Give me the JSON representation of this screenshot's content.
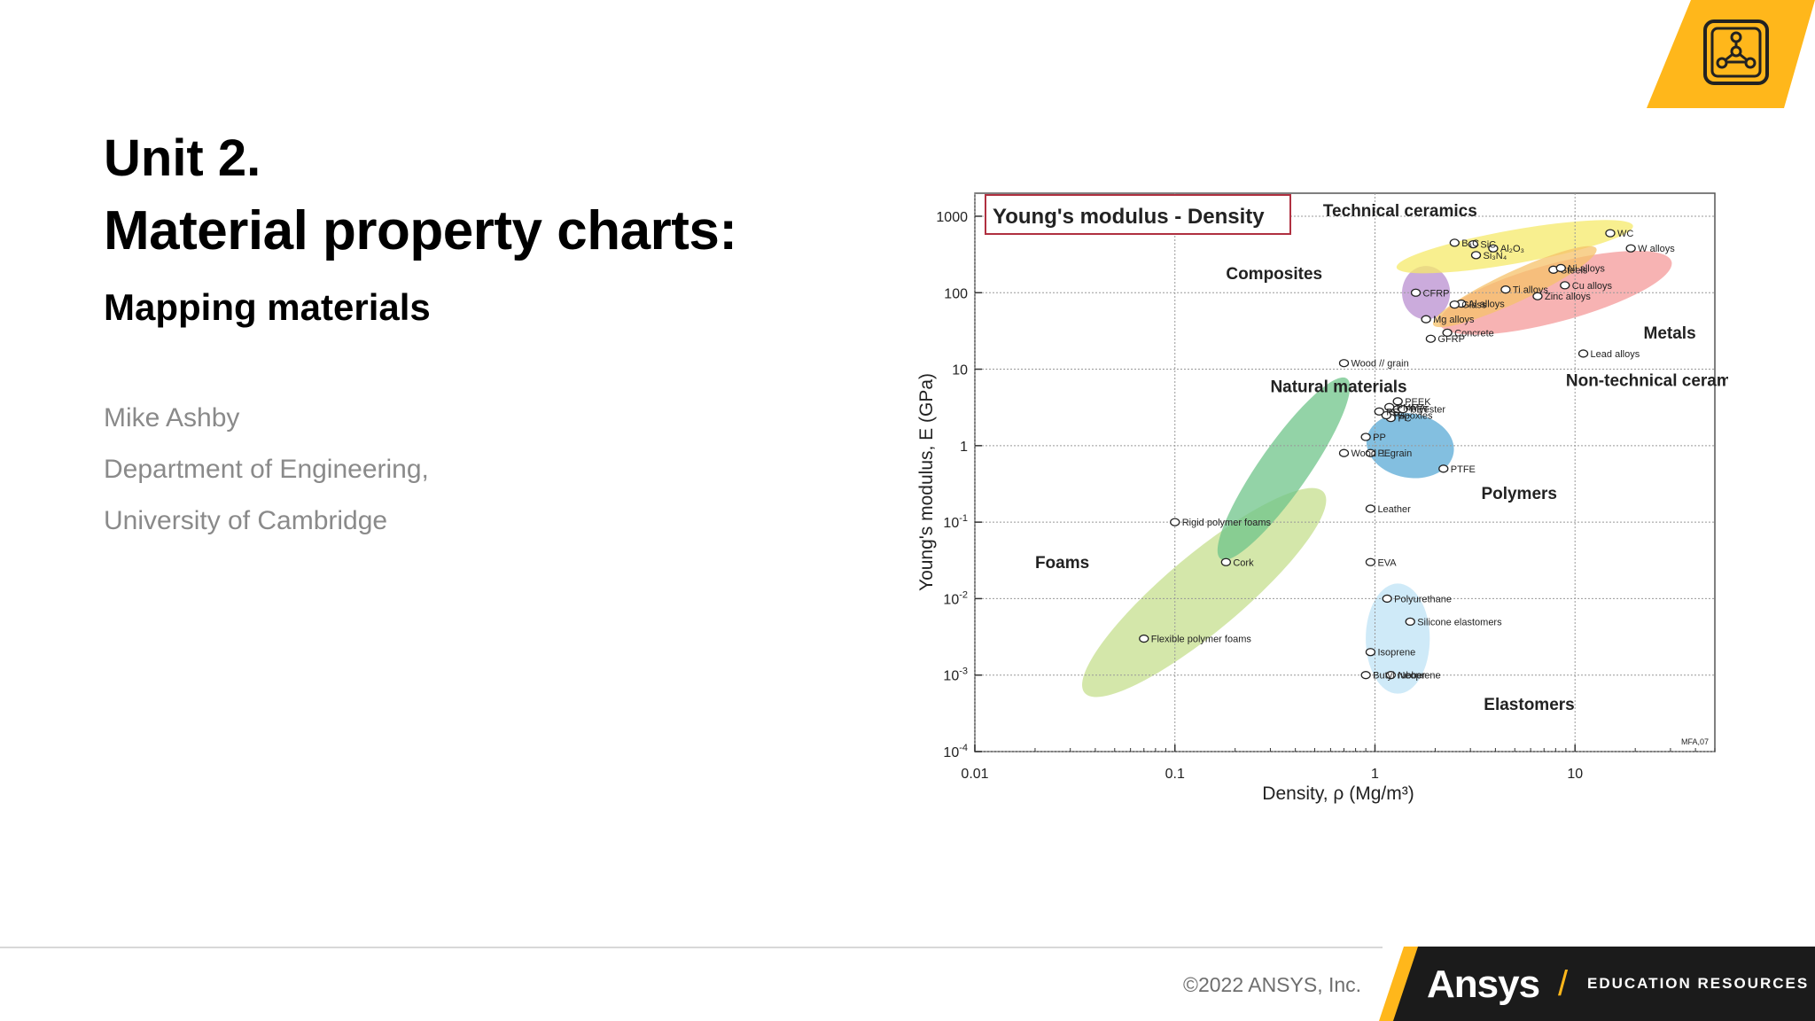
{
  "slide": {
    "unit": "Unit 2.",
    "title": "Material property charts:",
    "subtitle": "Mapping materials",
    "author": "Mike Ashby",
    "department": "Department of Engineering,",
    "university": "University of Cambridge"
  },
  "footer": {
    "copyright": "©2022 ANSYS, Inc.",
    "brand": "Ansys",
    "slash": "/",
    "tagline": "EDUCATION RESOURCES"
  },
  "logo": {
    "icon": "network-nodes-icon"
  },
  "colors": {
    "accent": "#ffb71b",
    "dark": "#1b1b1b"
  },
  "chart_data": {
    "type": "scatter",
    "title": "Young's modulus - Density",
    "xlabel": "Density, ρ  (Mg/m³)",
    "ylabel": "Young's modulus, E (GPa)",
    "xscale": "log",
    "yscale": "log",
    "xlim": [
      0.01,
      50
    ],
    "ylim": [
      0.0001,
      2000
    ],
    "x_ticks": [
      {
        "v": 0.01,
        "label": "0.01"
      },
      {
        "v": 0.1,
        "label": "0.1"
      },
      {
        "v": 1,
        "label": "1"
      },
      {
        "v": 10,
        "label": "10"
      }
    ],
    "y_ticks": [
      {
        "v": 1000,
        "base": "1000",
        "exp": ""
      },
      {
        "v": 100,
        "base": "100",
        "exp": ""
      },
      {
        "v": 10,
        "base": "10",
        "exp": ""
      },
      {
        "v": 1,
        "base": "1",
        "exp": ""
      },
      {
        "v": 0.1,
        "base": "10",
        "exp": "-1"
      },
      {
        "v": 0.01,
        "base": "10",
        "exp": "-2"
      },
      {
        "v": 0.001,
        "base": "10",
        "exp": "-3"
      },
      {
        "v": 0.0001,
        "base": "10",
        "exp": "-4"
      }
    ],
    "families": [
      {
        "label": "Foams",
        "x": 0.02,
        "y": 0.025,
        "color": "#c6df8e",
        "rx": 0.78,
        "ry": 0.5,
        "rot": -40,
        "cx": 0.14,
        "cy": 0.012
      },
      {
        "label": "Natural materials",
        "x": 0.3,
        "y": 5,
        "color": "#6fc48a",
        "rx": 0.55,
        "ry": 0.32,
        "rot": -55,
        "cx": 0.35,
        "cy": 0.5
      },
      {
        "label": "Polymers",
        "x": 3.4,
        "y": 0.2,
        "color": "#5aa9d6",
        "rx": 0.22,
        "ry": 0.42,
        "rot": 10,
        "cx": 1.5,
        "cy": 1.0
      },
      {
        "label": "Elastomers",
        "x": 3.5,
        "y": 0.00035,
        "color": "#bfe3f5",
        "rx": 0.16,
        "ry": 0.72,
        "rot": 0,
        "cx": 1.3,
        "cy": 0.003
      },
      {
        "label": "Composites",
        "x": 0.18,
        "y": 150,
        "color": "#b98fd0",
        "rx": 0.12,
        "ry": 0.35,
        "rot": 0,
        "cx": 1.8,
        "cy": 100
      },
      {
        "label": "Metals",
        "x": 22,
        "y": 25,
        "color": "#f49a9a",
        "rx": 0.6,
        "ry": 0.38,
        "rot": -15,
        "cx": 8,
        "cy": 100
      },
      {
        "label": "Technical ceramics",
        "x": 0.55,
        "y": 1000,
        "color": "#f5e96a",
        "rx": 0.6,
        "ry": 0.22,
        "rot": -10,
        "cx": 5,
        "cy": 400
      },
      {
        "label": "Non-technical ceramics",
        "x": 9,
        "y": 6,
        "color": "#f5c16a",
        "rx": 0.45,
        "ry": 0.2,
        "rot": -25,
        "cx": 5,
        "cy": 120
      }
    ],
    "materials": [
      {
        "label": "Al₂O₃",
        "x": 3.9,
        "y": 380
      },
      {
        "label": "SiC",
        "x": 3.1,
        "y": 430
      },
      {
        "label": "Si₃N₄",
        "x": 3.2,
        "y": 310
      },
      {
        "label": "B₄C",
        "x": 2.5,
        "y": 450
      },
      {
        "label": "Ti alloys",
        "x": 4.5,
        "y": 110
      },
      {
        "label": "Steels",
        "x": 7.8,
        "y": 200
      },
      {
        "label": "Ni alloys",
        "x": 8.5,
        "y": 210
      },
      {
        "label": "WC",
        "x": 15,
        "y": 600
      },
      {
        "label": "W alloys",
        "x": 19,
        "y": 380
      },
      {
        "label": "Cu alloys",
        "x": 8.9,
        "y": 125
      },
      {
        "label": "Lead alloys",
        "x": 11,
        "y": 16
      },
      {
        "label": "Zinc alloys",
        "x": 6.5,
        "y": 90
      },
      {
        "label": "Al alloys",
        "x": 2.7,
        "y": 72
      },
      {
        "label": "CFRP",
        "x": 1.6,
        "y": 100
      },
      {
        "label": "Glass",
        "x": 2.5,
        "y": 70
      },
      {
        "label": "Mg alloys",
        "x": 1.8,
        "y": 45
      },
      {
        "label": "GFRP",
        "x": 1.9,
        "y": 25
      },
      {
        "label": "Polyester",
        "x": 1.3,
        "y": 3
      },
      {
        "label": "Concrete",
        "x": 2.3,
        "y": 30
      },
      {
        "label": "PEEK",
        "x": 1.3,
        "y": 3.8
      },
      {
        "label": "PET",
        "x": 1.38,
        "y": 3
      },
      {
        "label": "Epoxies",
        "x": 1.2,
        "y": 2.5
      },
      {
        "label": "PC",
        "x": 1.2,
        "y": 2.3
      },
      {
        "label": "PP",
        "x": 0.9,
        "y": 1.3
      },
      {
        "label": "PE",
        "x": 0.95,
        "y": 0.8
      },
      {
        "label": "PTFE",
        "x": 2.2,
        "y": 0.5
      },
      {
        "label": "Wood // grain",
        "x": 0.7,
        "y": 12
      },
      {
        "label": "PMMA",
        "x": 1.18,
        "y": 3.2
      },
      {
        "label": "PA",
        "x": 1.14,
        "y": 2.5
      },
      {
        "label": "PS",
        "x": 1.05,
        "y": 2.8
      },
      {
        "label": "Wood ⊥ grain",
        "x": 0.7,
        "y": 0.8
      },
      {
        "label": "Leather",
        "x": 0.95,
        "y": 0.15
      },
      {
        "label": "Rigid polymer foams",
        "x": 0.1,
        "y": 0.1
      },
      {
        "label": "Cork",
        "x": 0.18,
        "y": 0.03
      },
      {
        "label": "Flexible polymer foams",
        "x": 0.07,
        "y": 0.003
      },
      {
        "label": "EVA",
        "x": 0.95,
        "y": 0.03
      },
      {
        "label": "Silicone elastomers",
        "x": 1.5,
        "y": 0.005
      },
      {
        "label": "Polyurethane",
        "x": 1.15,
        "y": 0.01
      },
      {
        "label": "Isoprene",
        "x": 0.95,
        "y": 0.002
      },
      {
        "label": "Neoprene",
        "x": 1.2,
        "y": 0.001
      },
      {
        "label": "Butyl rubber",
        "x": 0.9,
        "y": 0.001
      }
    ],
    "watermark": "MFA,07"
  }
}
